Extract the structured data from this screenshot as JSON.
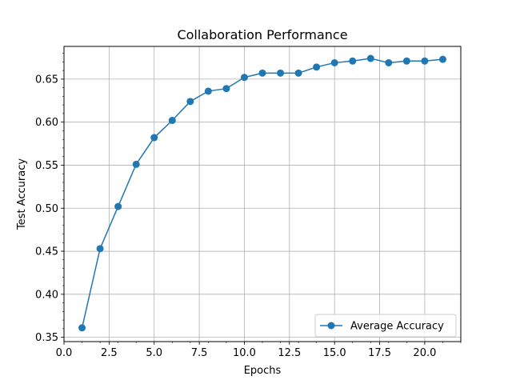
{
  "chart_data": {
    "type": "line",
    "title": "Collaboration Performance",
    "xlabel": "Epochs",
    "ylabel": "Test Accuracy",
    "xlim": [
      0,
      22
    ],
    "ylim": [
      0.345,
      0.688
    ],
    "xticks": [
      0.0,
      2.5,
      5.0,
      7.5,
      10.0,
      12.5,
      15.0,
      17.5,
      20.0
    ],
    "xtick_labels": [
      "0.0",
      "2.5",
      "5.0",
      "7.5",
      "10.0",
      "12.5",
      "15.0",
      "17.5",
      "20.0"
    ],
    "yticks": [
      0.35,
      0.4,
      0.45,
      0.5,
      0.55,
      0.6,
      0.65
    ],
    "ytick_labels": [
      "0.35",
      "0.40",
      "0.45",
      "0.50",
      "0.55",
      "0.60",
      "0.65"
    ],
    "grid": true,
    "legend_position": "lower-right",
    "series": [
      {
        "name": "Average Accuracy",
        "color": "#1f77b4",
        "marker": "circle",
        "x": [
          1,
          2,
          3,
          4,
          5,
          6,
          7,
          8,
          9,
          10,
          11,
          12,
          13,
          14,
          15,
          16,
          17,
          18,
          19,
          20,
          21
        ],
        "y": [
          0.361,
          0.453,
          0.502,
          0.551,
          0.582,
          0.602,
          0.624,
          0.636,
          0.639,
          0.652,
          0.657,
          0.657,
          0.657,
          0.664,
          0.669,
          0.671,
          0.674,
          0.669,
          0.671,
          0.671,
          0.673
        ]
      }
    ]
  }
}
